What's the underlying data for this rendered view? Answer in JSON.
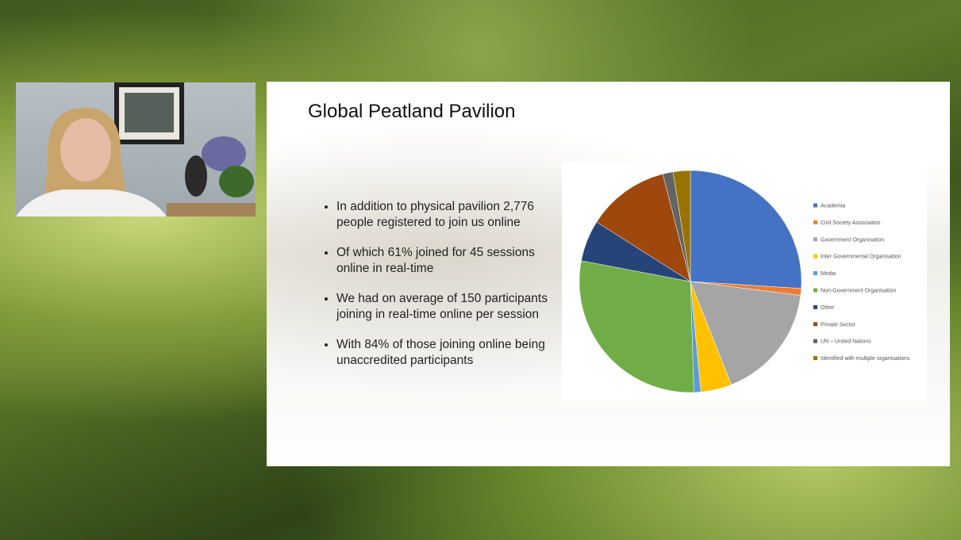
{
  "slide": {
    "title": "Global Peatland Pavilion",
    "bullets": [
      "In addition to physical pavilion 2,776 people registered to join us online",
      "Of which 61% joined for 45 sessions online in real-time",
      "We had on average of 150 participants joining in real-time online per session",
      "With 84% of those joining online being unaccredited participants"
    ]
  },
  "chart_data": {
    "type": "pie",
    "categories": [
      "Academia",
      "Civil Society Association",
      "Government Organisation",
      "Inter Governmental Organisation",
      "Media",
      "Non-Government Organisation",
      "Other",
      "Private Sector",
      "UN – United Nations",
      "Identified with multiple organisations"
    ],
    "values": [
      26,
      1,
      17,
      4.5,
      1,
      28.5,
      6,
      12,
      1.5,
      2.5
    ],
    "colors": [
      "#4472c4",
      "#ed7d31",
      "#a5a5a5",
      "#ffc000",
      "#5b9bd5",
      "#70ad47",
      "#264478",
      "#9e480e",
      "#636363",
      "#997300"
    ]
  }
}
